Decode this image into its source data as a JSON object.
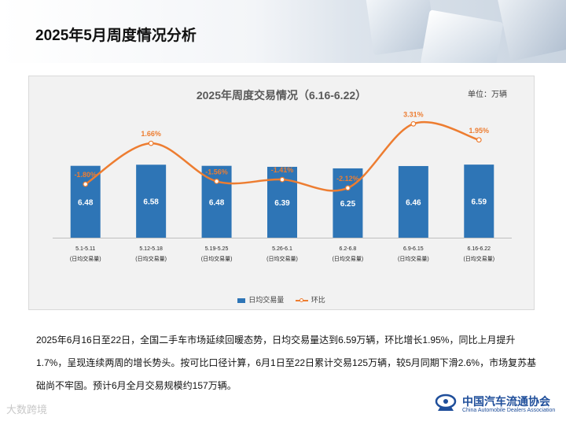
{
  "page": {
    "title": "2025年5月周度情况分析"
  },
  "chart_data": {
    "type": "bar",
    "title": "2025年周度交易情况（6.16-6.22）",
    "unit_label": "单位：万辆",
    "categories": [
      "5.1-5.11",
      "5.12-5.18",
      "5.19-5.25",
      "5.26-6.1",
      "6.2-6.8",
      "6.9-6.15",
      "6.16-6.22"
    ],
    "category_sublabel": "(日均交易量)",
    "series": [
      {
        "name": "日均交易量",
        "kind": "bar",
        "color": "#2e75b6",
        "values": [
          6.48,
          6.58,
          6.48,
          6.39,
          6.25,
          6.46,
          6.59
        ]
      },
      {
        "name": "环比",
        "kind": "line",
        "color": "#ed7d31",
        "values": [
          -1.8,
          1.66,
          -1.56,
          -1.41,
          -2.12,
          3.31,
          1.95
        ],
        "labels": [
          "-1.80%",
          "1.66%",
          "-1.56%",
          "-1.41%",
          "-2.12%",
          "3.31%",
          "1.95%"
        ]
      }
    ],
    "bar_ylim": [
      0,
      6.6
    ],
    "line_ylim": [
      -6,
      4
    ],
    "legend_position": "bottom"
  },
  "description": "2025年6月16日至22日，全国二手车市场延续回暖态势，日均交易量达到6.59万辆，环比增长1.95%，同比上月提升1.7%，呈现连续两周的增长势头。按可比口径计算，6月1日至22日累计交易125万辆，较5月同期下滑2.6%，市场复苏基础尚不牢固。预计6月全月交易规模约157万辆。",
  "watermark": "大数跨境",
  "logo": {
    "cn": "中国汽车流通协会",
    "en": "China Automobile Dealers Association"
  }
}
